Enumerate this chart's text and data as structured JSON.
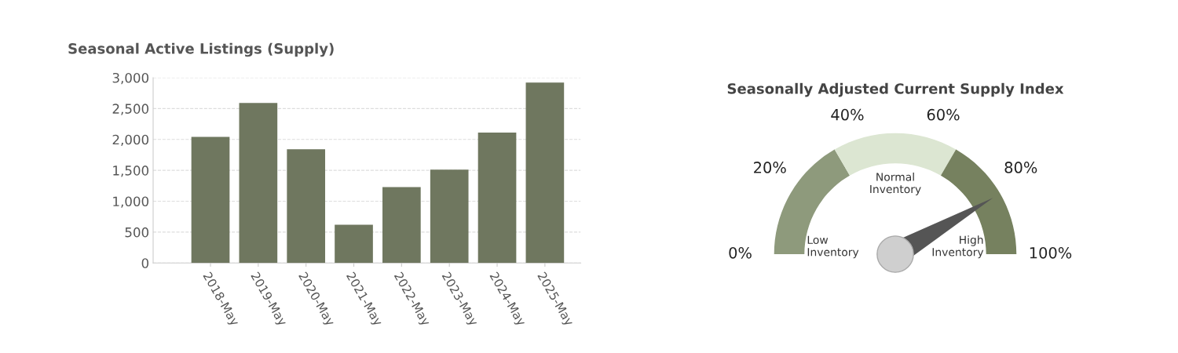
{
  "chart_data": [
    {
      "type": "bar",
      "title": "Seasonal Active Listings (Supply)",
      "categories": [
        "2018-May",
        "2019-May",
        "2020-May",
        "2021-May",
        "2022-May",
        "2023-May",
        "2024-May",
        "2025-May"
      ],
      "values": [
        2040,
        2590,
        1840,
        620,
        1230,
        1510,
        2110,
        2920
      ],
      "color": "#6f775f",
      "ylim": [
        0,
        3000
      ],
      "yticks": [
        {
          "value": 0,
          "label": "0"
        },
        {
          "value": 500,
          "label": "500"
        },
        {
          "value": 1000,
          "label": "1,000"
        },
        {
          "value": 1500,
          "label": "1,500"
        },
        {
          "value": 2000,
          "label": "2,000"
        },
        {
          "value": 2500,
          "label": "2,500"
        },
        {
          "value": 3000,
          "label": "3,000"
        }
      ],
      "grid": "y"
    },
    {
      "type": "donut",
      "title": "Seasonally Adjusted Current Supply Index",
      "categories": [
        "Low Inventory",
        "Normal Inventory",
        "High Inventory"
      ],
      "values": [
        33.3,
        33.4,
        33.3
      ],
      "colors": [
        "#8e9a7c",
        "#dce6d2",
        "#76815f"
      ],
      "needle": "High Inventory",
      "annotations": [
        "0%",
        "20%",
        "40%",
        "60%",
        "80%",
        "100%"
      ]
    }
  ]
}
